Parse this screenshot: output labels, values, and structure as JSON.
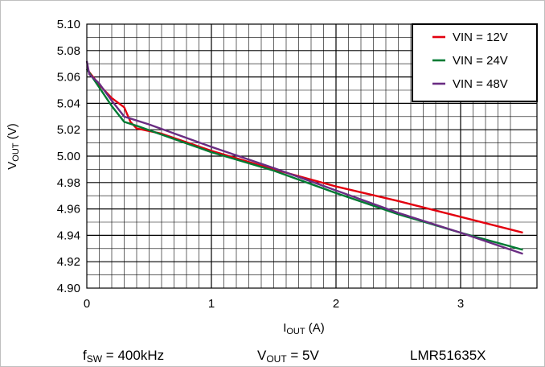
{
  "chart_data": {
    "type": "line",
    "xlabel": {
      "main": "I",
      "sub": "OUT",
      "unit": " (A)"
    },
    "ylabel": {
      "main": "V",
      "sub": "OUT",
      "unit": " (V)"
    },
    "xlim": [
      0,
      3.5
    ],
    "ylim": [
      4.9,
      5.1
    ],
    "xticks": [
      0,
      1,
      2,
      3
    ],
    "xtick_labels": [
      "0",
      "1",
      "2",
      "3"
    ],
    "yticks": [
      4.9,
      4.92,
      4.94,
      4.96,
      4.98,
      5.0,
      5.02,
      5.04,
      5.06,
      5.08,
      5.1
    ],
    "ytick_labels": [
      "4.90",
      "4.92",
      "4.94",
      "4.96",
      "4.98",
      "5.00",
      "5.02",
      "5.04",
      "5.06",
      "5.08",
      "5.10"
    ],
    "grid": {
      "major": true,
      "minor": true,
      "x_minor_step": 0.1,
      "y_minor_step": 0.01
    },
    "legend_position": "top-right",
    "series": [
      {
        "name": "VIN = 12V",
        "color": "#e3000f",
        "points": [
          [
            0,
            5.066
          ],
          [
            0.1,
            5.054
          ],
          [
            0.2,
            5.044
          ],
          [
            0.3,
            5.037
          ],
          [
            0.35,
            5.026
          ],
          [
            0.4,
            5.021
          ],
          [
            0.6,
            5.017
          ],
          [
            1.0,
            5.004
          ],
          [
            1.5,
            4.99
          ],
          [
            2.0,
            4.977
          ],
          [
            2.5,
            4.966
          ],
          [
            3.0,
            4.954
          ],
          [
            3.5,
            4.942
          ]
        ]
      },
      {
        "name": "VIN = 24V",
        "color": "#007a33",
        "points": [
          [
            0,
            5.066
          ],
          [
            0.1,
            5.052
          ],
          [
            0.2,
            5.038
          ],
          [
            0.3,
            5.026
          ],
          [
            0.4,
            5.023
          ],
          [
            0.7,
            5.013
          ],
          [
            1.0,
            5.003
          ],
          [
            1.5,
            4.989
          ],
          [
            2.0,
            4.972
          ],
          [
            2.5,
            4.956
          ],
          [
            3.0,
            4.942
          ],
          [
            3.5,
            4.929
          ]
        ]
      },
      {
        "name": "VIN = 48V",
        "color": "#6a2c82",
        "points": [
          [
            0,
            5.072
          ],
          [
            0.02,
            5.062
          ],
          [
            0.1,
            5.055
          ],
          [
            0.2,
            5.042
          ],
          [
            0.3,
            5.03
          ],
          [
            0.5,
            5.024
          ],
          [
            1.0,
            5.007
          ],
          [
            1.5,
            4.991
          ],
          [
            2.0,
            4.974
          ],
          [
            2.5,
            4.957
          ],
          [
            3.0,
            4.942
          ],
          [
            3.5,
            4.926
          ]
        ]
      }
    ]
  },
  "footer": {
    "fsw": {
      "main": "f",
      "sub": "SW",
      "rest": " = 400kHz"
    },
    "vout": {
      "main": "V",
      "sub": "OUT",
      "rest": " = 5V"
    },
    "part": "LMR51635X"
  },
  "colors": {
    "axis": "#000000",
    "grid_major": "#000000",
    "grid_minor": "#000000",
    "frame": "#bfbfbf"
  }
}
